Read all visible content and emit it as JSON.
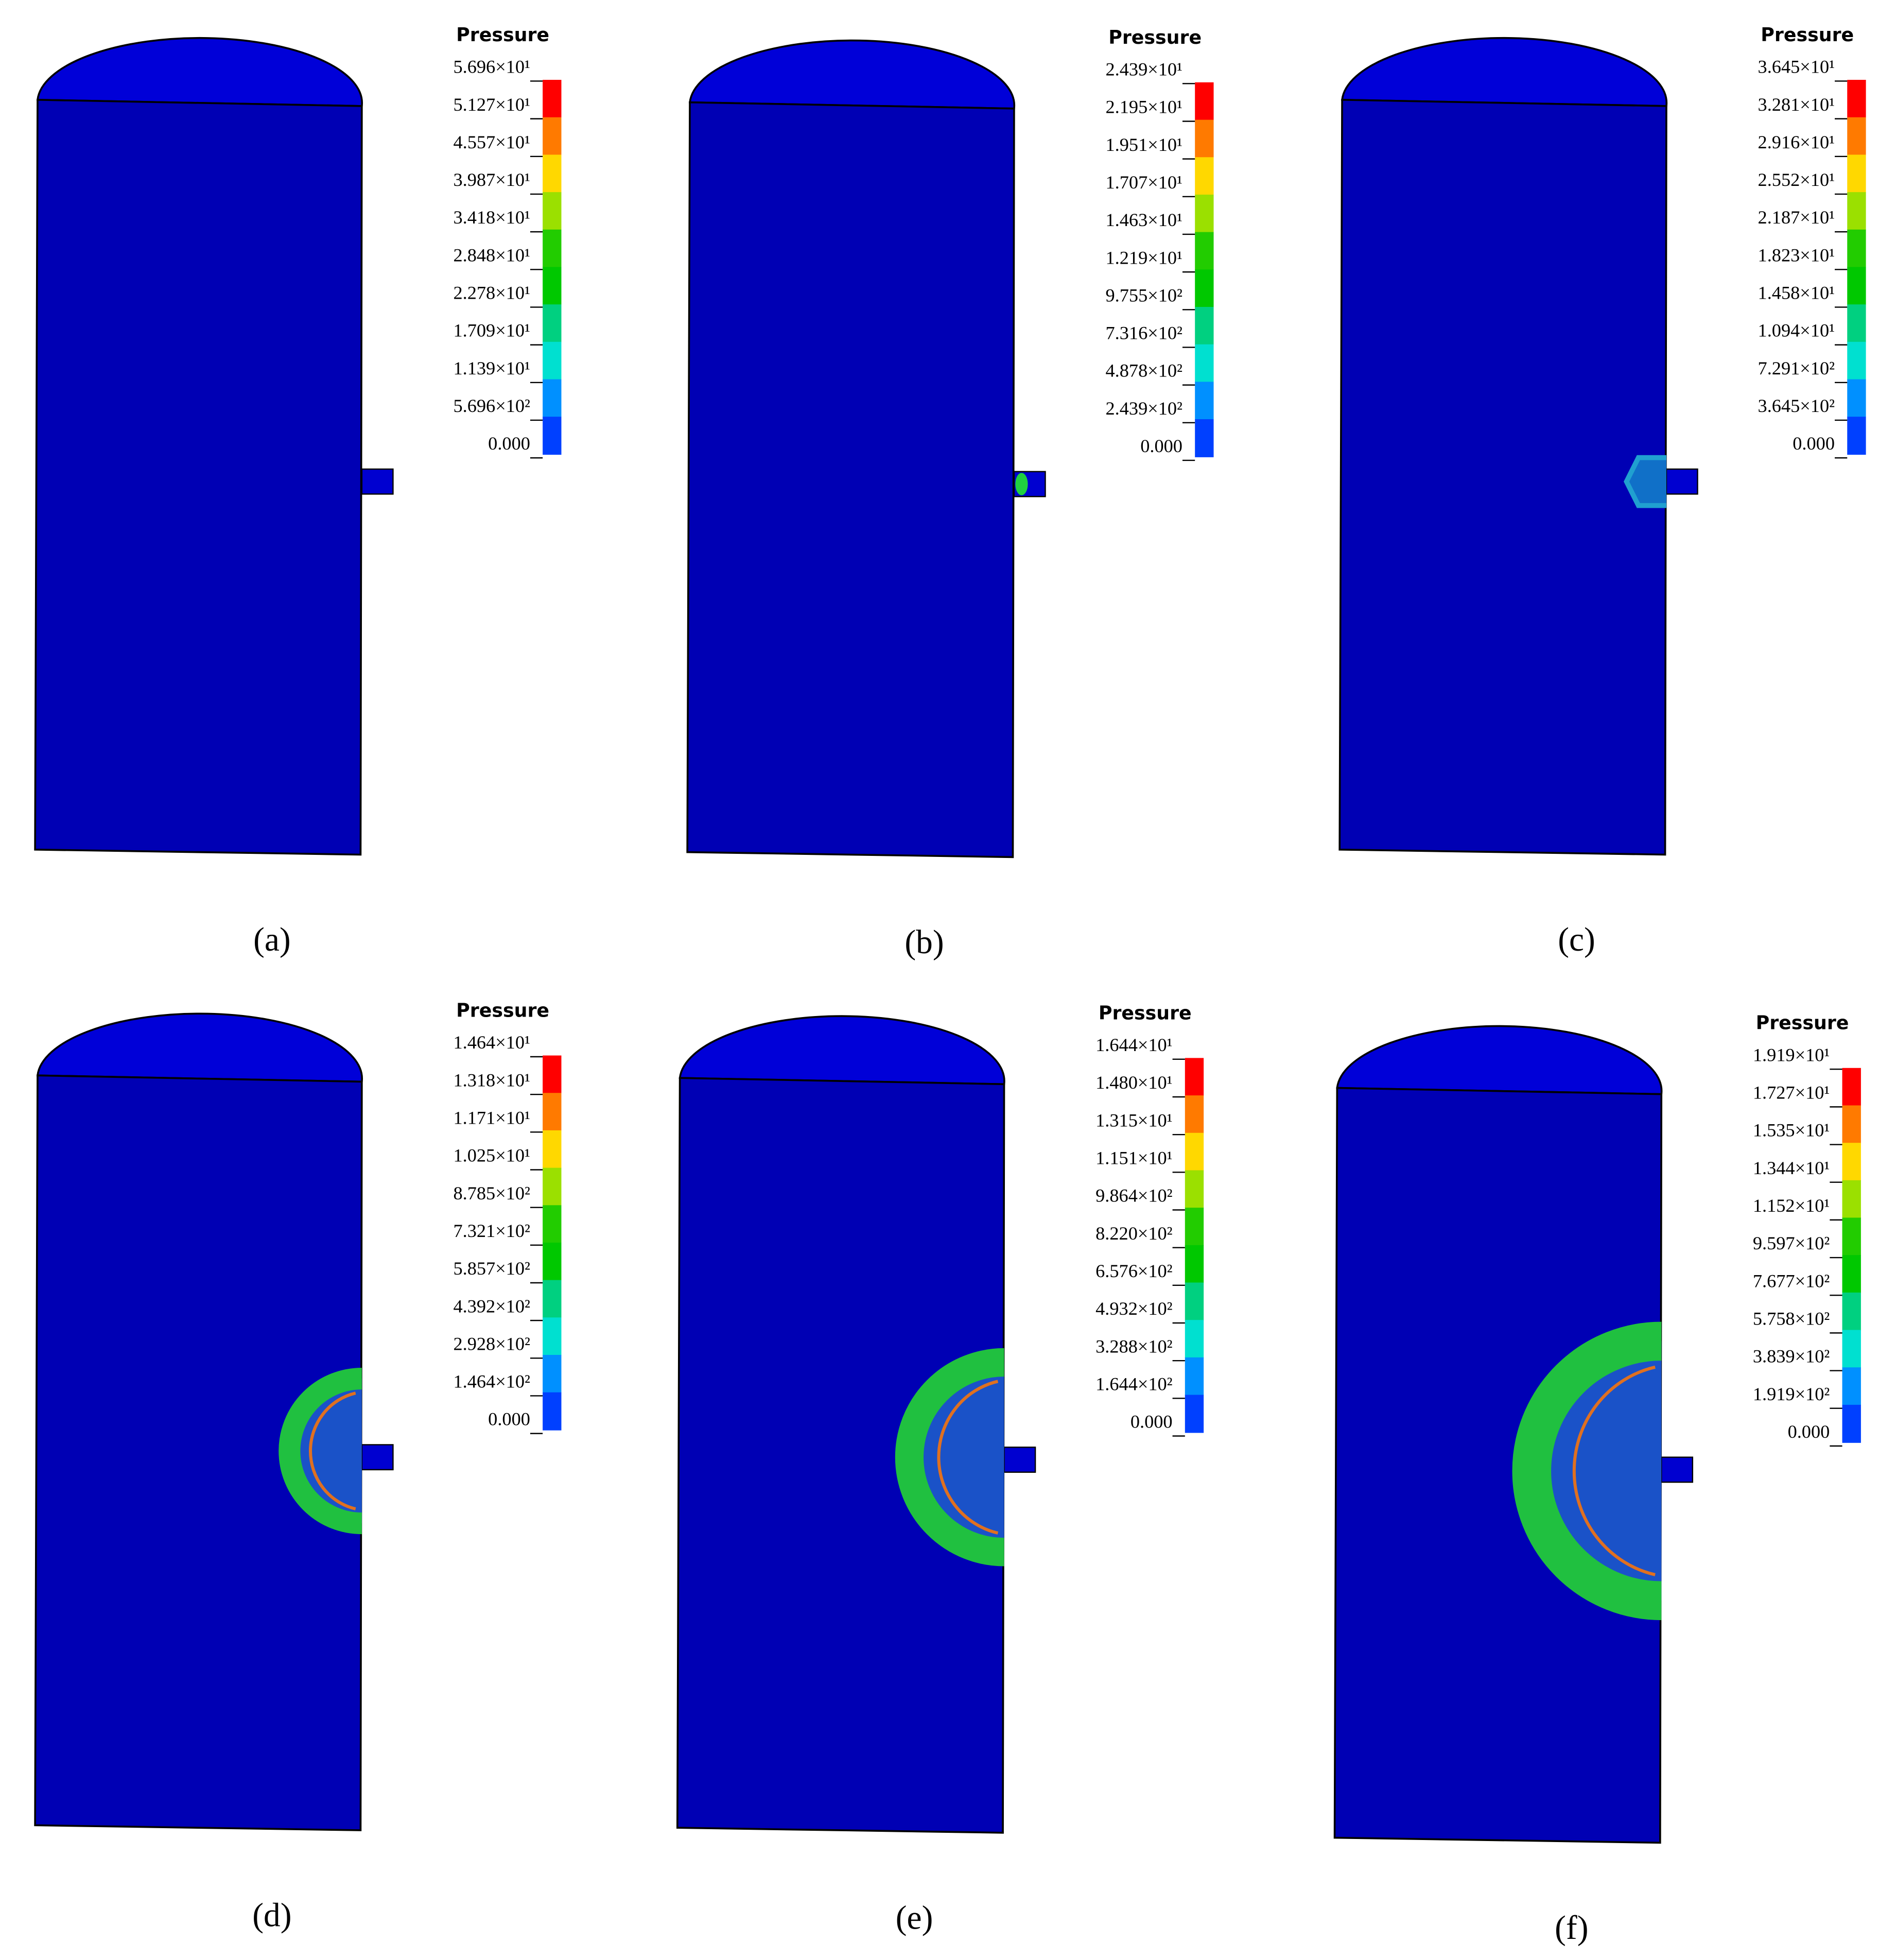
{
  "panels": [
    {
      "caption": "(a)",
      "legend_title": "Pressure",
      "legend_labels": [
        "5.696×10¹",
        "5.127×10¹",
        "4.557×10¹",
        "3.987×10¹",
        "3.418×10¹",
        "2.848×10¹",
        "2.278×10¹",
        "1.709×10¹",
        "1.139×10¹",
        "5.696×10²",
        "0.000"
      ]
    },
    {
      "caption": "(b)",
      "legend_title": "Pressure",
      "legend_labels": [
        "2.439×10¹",
        "2.195×10¹",
        "1.951×10¹",
        "1.707×10¹",
        "1.463×10¹",
        "1.219×10¹",
        "9.755×10²",
        "7.316×10²",
        "4.878×10²",
        "2.439×10²",
        "0.000"
      ]
    },
    {
      "caption": "(c)",
      "legend_title": "Pressure",
      "legend_labels": [
        "3.645×10¹",
        "3.281×10¹",
        "2.916×10¹",
        "2.552×10¹",
        "2.187×10¹",
        "1.823×10¹",
        "1.458×10¹",
        "1.094×10¹",
        "7.291×10²",
        "3.645×10²",
        "0.000"
      ]
    },
    {
      "caption": "(d)",
      "legend_title": "Pressure",
      "legend_labels": [
        "1.464×10¹",
        "1.318×10¹",
        "1.171×10¹",
        "1.025×10¹",
        "8.785×10²",
        "7.321×10²",
        "5.857×10²",
        "4.392×10²",
        "2.928×10²",
        "1.464×10²",
        "0.000"
      ]
    },
    {
      "caption": "(e)",
      "legend_title": "Pressure",
      "legend_labels": [
        "1.644×10¹",
        "1.480×10¹",
        "1.315×10¹",
        "1.151×10¹",
        "9.864×10²",
        "8.220×10²",
        "6.576×10²",
        "4.932×10²",
        "3.288×10²",
        "1.644×10²",
        "0.000"
      ]
    },
    {
      "caption": "(f)",
      "legend_title": "Pressure",
      "legend_labels": [
        "1.919×10¹",
        "1.727×10¹",
        "1.535×10¹",
        "1.344×10¹",
        "1.152×10¹",
        "9.597×10²",
        "7.677×10²",
        "5.758×10²",
        "3.839×10²",
        "1.919×10²",
        "0.000"
      ]
    }
  ]
}
